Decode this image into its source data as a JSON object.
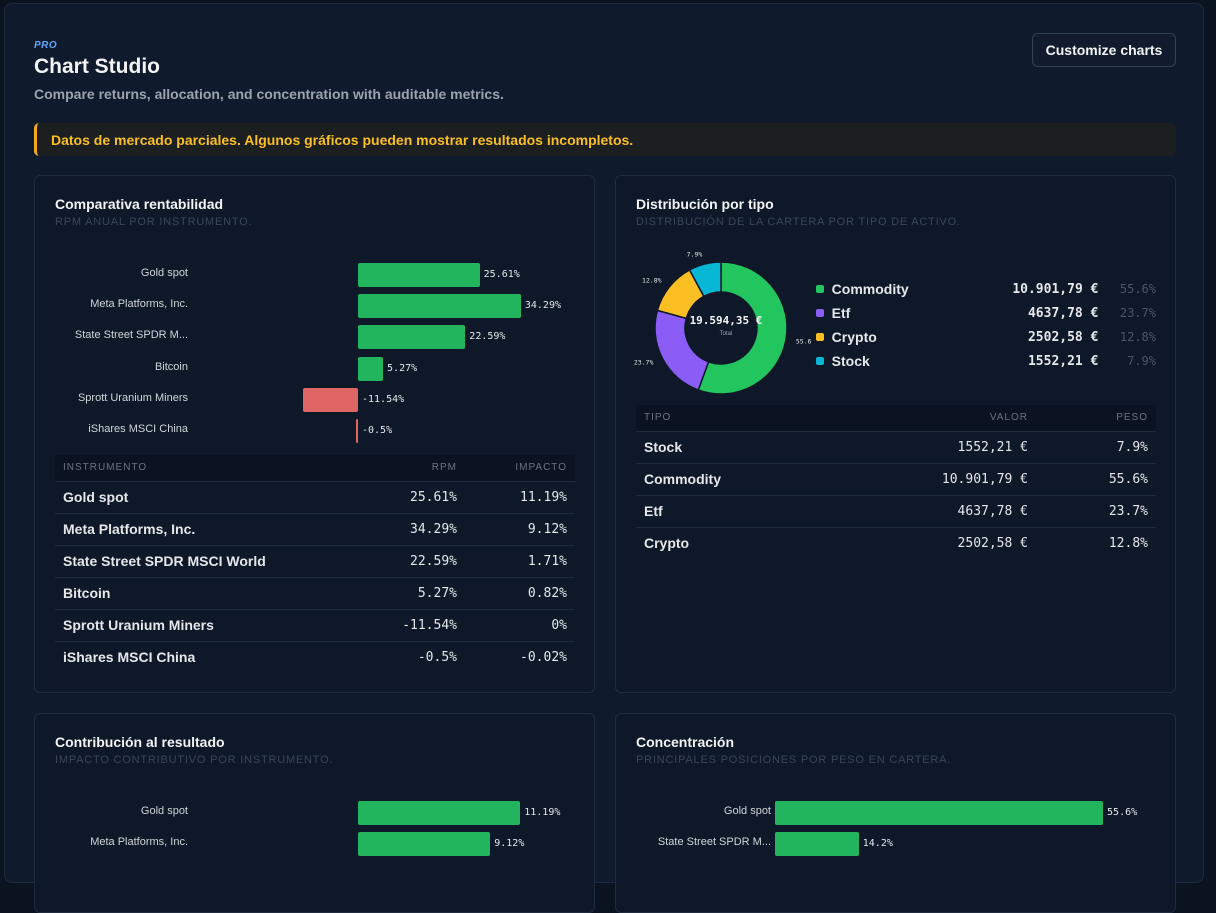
{
  "header": {
    "badge": "PRO",
    "title": "Chart Studio",
    "subtitle": "Compare returns, allocation, and concentration with auditable metrics.",
    "customize_label": "Customize charts"
  },
  "alert": {
    "text": "Datos de mercado parciales. Algunos gráficos pueden mostrar resultados incompletos."
  },
  "colors": {
    "positive": "#22b55d",
    "negative": "#e06666",
    "commodity": "#22c55e",
    "etf": "#8b5cf6",
    "crypto": "#fbbf24",
    "stock": "#06b6d4"
  },
  "returns": {
    "title": "Comparativa rentabilidad",
    "subtitle": "RPM anual por instrumento.",
    "columns": {
      "instrument": "INSTRUMENTO",
      "rpm": "RPM",
      "impact": "IMPACTO"
    },
    "rows": [
      {
        "name": "Gold spot",
        "rpm": "25.61%",
        "impact": "11.19%"
      },
      {
        "name": "Meta Platforms, Inc.",
        "rpm": "34.29%",
        "impact": "9.12%"
      },
      {
        "name": "State Street SPDR MSCI World",
        "rpm": "22.59%",
        "impact": "1.71%"
      },
      {
        "name": "Bitcoin",
        "rpm": "5.27%",
        "impact": "0.82%"
      },
      {
        "name": "Sprott Uranium Miners",
        "rpm": "-11.54%",
        "impact": "0%"
      },
      {
        "name": "iShares MSCI China",
        "rpm": "-0.5%",
        "impact": "-0.02%"
      }
    ]
  },
  "distribution": {
    "title": "Distribución por tipo",
    "subtitle": "Distribución de la cartera por tipo de activo.",
    "total": "19.594,35 €",
    "total_label": "Total",
    "legend": [
      {
        "name": "Commodity",
        "value": "10.901,79 €",
        "pct": "55.6%",
        "color": "#22c55e"
      },
      {
        "name": "Etf",
        "value": "4637,78 €",
        "pct": "23.7%",
        "color": "#8b5cf6"
      },
      {
        "name": "Crypto",
        "value": "2502,58 €",
        "pct": "12.8%",
        "color": "#fbbf24"
      },
      {
        "name": "Stock",
        "value": "1552,21 €",
        "pct": "7.9%",
        "color": "#06b6d4"
      }
    ],
    "columns": {
      "type": "TIPO",
      "value": "VALOR",
      "weight": "PESO"
    },
    "rows": [
      {
        "type": "Stock",
        "value": "1552,21 €",
        "weight": "7.9%"
      },
      {
        "type": "Commodity",
        "value": "10.901,79 €",
        "weight": "55.6%"
      },
      {
        "type": "Etf",
        "value": "4637,78 €",
        "weight": "23.7%"
      },
      {
        "type": "Crypto",
        "value": "2502,58 €",
        "weight": "12.8%"
      }
    ]
  },
  "contribution": {
    "title": "Contribución al resultado",
    "subtitle": "Impacto contributivo por instrumento."
  },
  "concentration": {
    "title": "Concentración",
    "subtitle": "Principales posiciones por peso en cartera."
  },
  "chart_data": [
    {
      "type": "bar",
      "orientation": "horizontal",
      "categories": [
        "Gold spot",
        "Meta Platforms, Inc.",
        "State Street SPDR M...",
        "Bitcoin",
        "Sprott Uranium Miners",
        "iShares MSCI China"
      ],
      "values": [
        25.61,
        34.29,
        22.59,
        5.27,
        -11.54,
        -0.5
      ],
      "labels": [
        "25.61%",
        "34.29%",
        "22.59%",
        "5.27%",
        "-11.54%",
        "-0.5%"
      ],
      "title": "Comparativa rentabilidad"
    },
    {
      "type": "pie",
      "categories": [
        "Commodity",
        "Etf",
        "Crypto",
        "Stock"
      ],
      "values": [
        55.6,
        23.7,
        12.8,
        7.9
      ],
      "labels": [
        "55.6%",
        "23.7%",
        "12.8%",
        "7.9%"
      ],
      "title": "Distribución por tipo"
    },
    {
      "type": "bar",
      "orientation": "horizontal",
      "categories": [
        "Gold spot",
        "Meta Platforms, Inc."
      ],
      "values": [
        11.19,
        9.12
      ],
      "labels": [
        "11.19%",
        "9.12%"
      ],
      "title": "Contribución al resultado"
    },
    {
      "type": "bar",
      "orientation": "horizontal",
      "categories": [
        "Gold spot",
        "State Street SPDR M..."
      ],
      "values": [
        55.6,
        14.2
      ],
      "labels": [
        "55.6%",
        "14.2%"
      ],
      "title": "Concentración"
    }
  ]
}
